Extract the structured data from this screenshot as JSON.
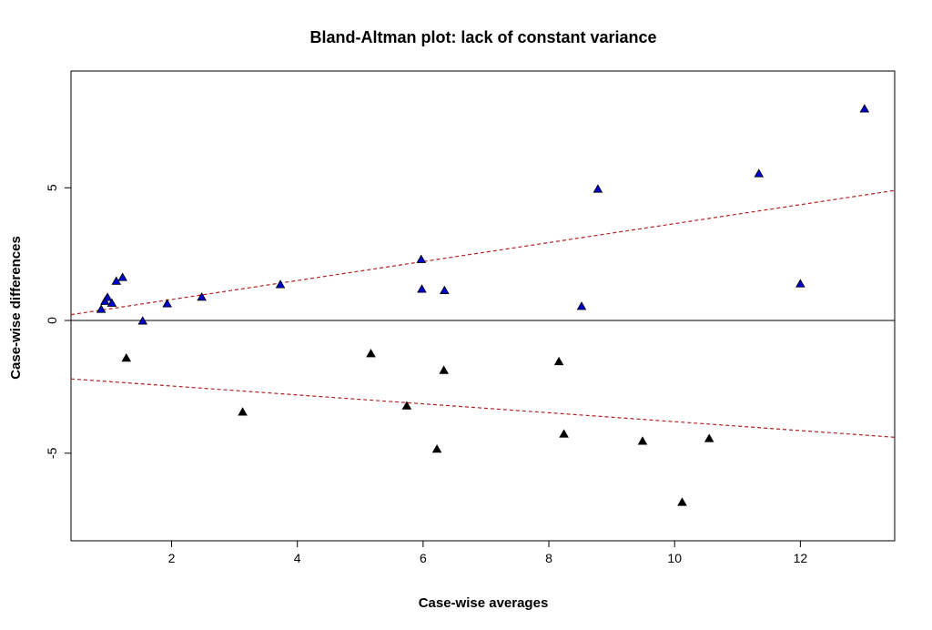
{
  "chart_data": {
    "type": "scatter",
    "title": "Bland-Altman plot: lack of constant variance",
    "xlabel": "Case-wise averages",
    "ylabel": "Case-wise differences",
    "xlim": [
      0.4,
      13.5
    ],
    "ylim": [
      -8.3,
      9.4
    ],
    "xticks": [
      "2",
      "4",
      "6",
      "8",
      "10",
      "12"
    ],
    "yticks": [
      "-5",
      "0",
      "5"
    ],
    "grid": false,
    "legend": "none",
    "reference_line": {
      "y": 0,
      "color": "#000000"
    },
    "trend_lines": [
      {
        "name": "upper",
        "x": [
          0.4,
          13.5
        ],
        "y": [
          0.22,
          4.9
        ],
        "color": "#B22222",
        "dash": true
      },
      {
        "name": "lower",
        "x": [
          0.4,
          13.5
        ],
        "y": [
          -2.2,
          -4.4
        ],
        "color": "#B22222",
        "dash": true
      }
    ],
    "series": [
      {
        "marker": "triangle",
        "color": "#0000CC",
        "edge_color": "#000000",
        "x": [
          0.88,
          0.94,
          0.98,
          1.05,
          1.12,
          1.22,
          1.54,
          1.93,
          2.48,
          3.73,
          5.97,
          5.98,
          6.34,
          8.52,
          8.78,
          11.34,
          12.0,
          13.02
        ],
        "y": [
          0.42,
          0.72,
          0.87,
          0.65,
          1.48,
          1.62,
          -0.02,
          0.63,
          0.88,
          1.35,
          2.3,
          1.18,
          1.13,
          0.53,
          4.95,
          5.53,
          1.38,
          7.97
        ]
      },
      {
        "marker": "triangle",
        "color": "#000000",
        "edge_color": "#000000",
        "x": [
          1.28,
          3.13,
          5.17,
          5.74,
          6.22,
          6.33,
          8.16,
          8.24,
          9.49,
          10.12,
          10.55
        ],
        "y": [
          -1.42,
          -3.45,
          -1.25,
          -3.22,
          -4.85,
          -1.88,
          -1.55,
          -4.28,
          -4.55,
          -6.85,
          -4.45
        ]
      }
    ]
  }
}
